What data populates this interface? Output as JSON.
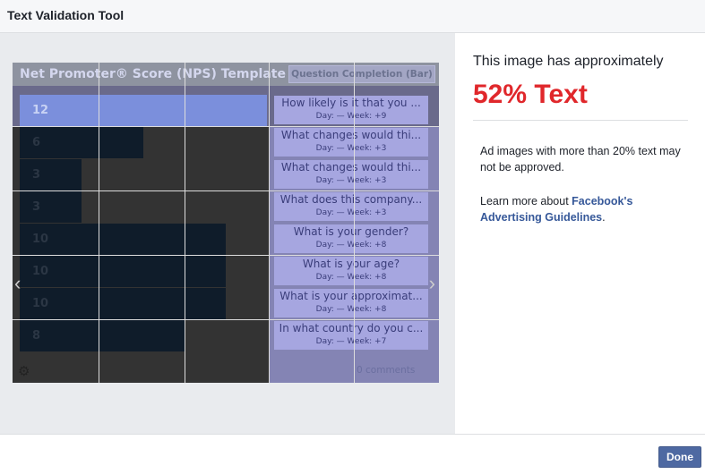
{
  "dialog": {
    "title": "Text Validation Tool",
    "done_label": "Done"
  },
  "preview": {
    "header_title": "Net Promoter® Score (NPS) Template ...",
    "header_button": "Question Completion (Bar)",
    "comments": "0 comments",
    "rows": [
      {
        "value": "12",
        "question": "How likely is it that you ...",
        "stats": "Day: —   Week: +9"
      },
      {
        "value": "6",
        "question": "What changes would thi...",
        "stats": "Day: —   Week: +3"
      },
      {
        "value": "3",
        "question": "What changes would thi...",
        "stats": "Day: —   Week: +3"
      },
      {
        "value": "3",
        "question": "What does this company...",
        "stats": "Day: —   Week: +3"
      },
      {
        "value": "10",
        "question": "What is your gender?",
        "stats": "Day: —   Week: +8"
      },
      {
        "value": "10",
        "question": "What is your age?",
        "stats": "Day: —   Week: +8"
      },
      {
        "value": "10",
        "question": "What is your approximat...",
        "stats": "Day: —   Week: +8"
      },
      {
        "value": "8",
        "question": "In what country do you c...",
        "stats": "Day: —   Week: +7"
      }
    ]
  },
  "result": {
    "intro": "This image has approximately",
    "percent": "52% Text",
    "warning": "Ad images with more than 20% text may not be approved.",
    "learn_prefix": "Learn more about ",
    "learn_link": "Facebook's Advertising Guidelines",
    "learn_suffix": "."
  },
  "colors": {
    "percent": "#e0272b",
    "link": "#365899",
    "done": "#4e69a2",
    "overlay": "#aaaaf0"
  }
}
